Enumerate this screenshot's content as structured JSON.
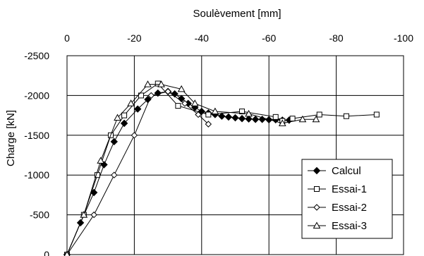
{
  "chart_data": {
    "type": "line",
    "title": "",
    "xlabel": "Soulèvement [mm]",
    "ylabel": "Charge [kN]",
    "xlim": [
      0,
      -100
    ],
    "ylim": [
      0,
      -2500
    ],
    "x_ticks": [
      "0",
      "-20",
      "-40",
      "-60",
      "-80",
      "-100"
    ],
    "y_ticks": [
      "0",
      "-500",
      "-1000",
      "-1500",
      "-2000",
      "-2500"
    ],
    "x_tick_values": [
      0,
      -20,
      -40,
      -60,
      -80,
      -100
    ],
    "y_tick_values": [
      0,
      -500,
      -1000,
      -1500,
      -2000,
      -2500
    ],
    "x_axis_position": "top",
    "grid": true,
    "legend_position": "bottom-right",
    "series": [
      {
        "name": "Calcul",
        "marker": "diamond-filled",
        "x": [
          0,
          -4,
          -8,
          -11,
          -14,
          -17,
          -21,
          -24,
          -27,
          -30,
          -32,
          -34,
          -36,
          -38,
          -40,
          -42,
          -44,
          -46,
          -48,
          -50,
          -52,
          -54,
          -56,
          -58,
          -60,
          -62,
          -64,
          -66
        ],
        "y": [
          0,
          -400,
          -780,
          -1130,
          -1420,
          -1650,
          -1830,
          -1950,
          -2030,
          -2050,
          -2020,
          -1960,
          -1900,
          -1850,
          -1800,
          -1780,
          -1760,
          -1740,
          -1730,
          -1720,
          -1710,
          -1705,
          -1700,
          -1700,
          -1695,
          -1695,
          -1690,
          -1690
        ]
      },
      {
        "name": "Essai-1",
        "marker": "square-open",
        "x": [
          0,
          -5,
          -9,
          -13,
          -17,
          -22,
          -27,
          -33,
          -42,
          -52,
          -62,
          -64,
          -67,
          -75,
          -83,
          -92
        ],
        "y": [
          0,
          -500,
          -1000,
          -1500,
          -1750,
          -2000,
          -2150,
          -1870,
          -1760,
          -1800,
          -1730,
          -1680,
          -1710,
          -1760,
          -1740,
          -1760
        ]
      },
      {
        "name": "Essai-2",
        "marker": "diamond-open",
        "x": [
          0,
          -8,
          -14,
          -20,
          -25,
          -30,
          -35,
          -39,
          -42
        ],
        "y": [
          0,
          -500,
          -1000,
          -1500,
          -2000,
          -2050,
          -1900,
          -1760,
          -1640
        ]
      },
      {
        "name": "Essai-3",
        "marker": "triangle-open",
        "x": [
          0,
          -5,
          -10,
          -15,
          -19,
          -24,
          -28,
          -34,
          -38,
          -44,
          -54,
          -64,
          -70,
          -74
        ],
        "y": [
          0,
          -500,
          -1180,
          -1720,
          -1900,
          -2140,
          -2140,
          -2080,
          -1900,
          -1800,
          -1770,
          -1650,
          -1700,
          -1700
        ]
      }
    ]
  }
}
